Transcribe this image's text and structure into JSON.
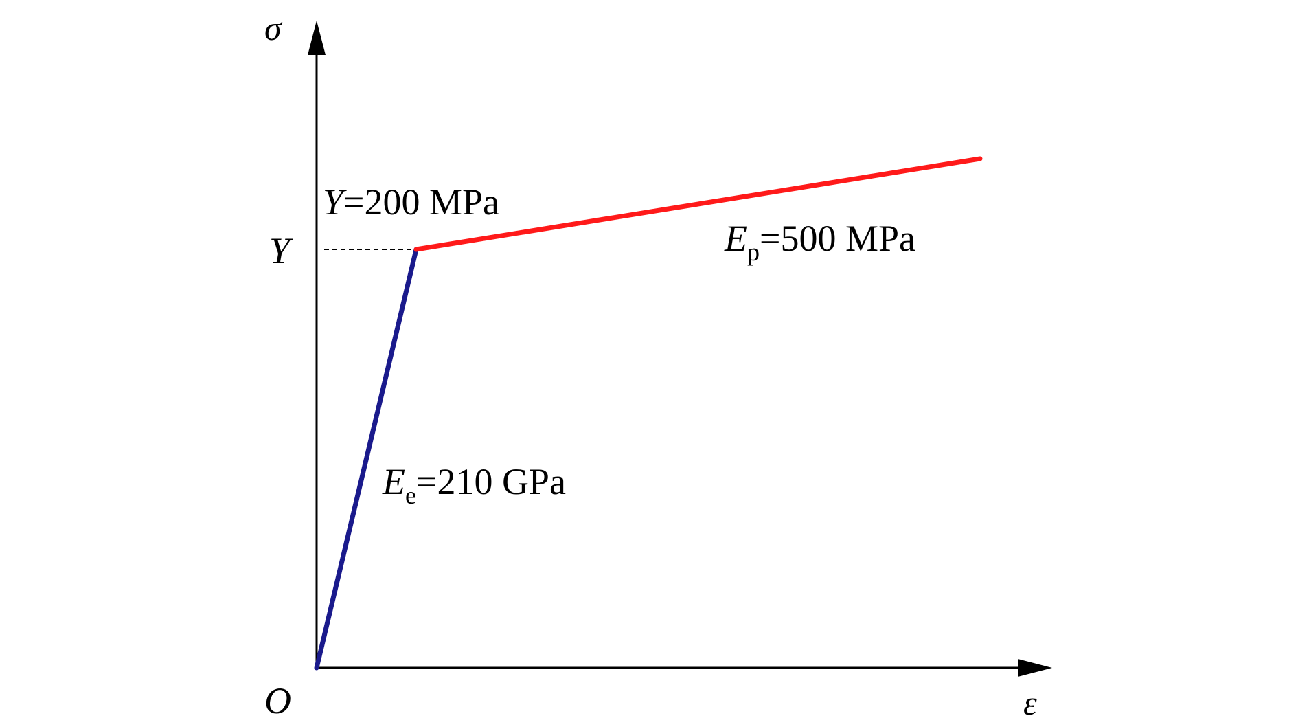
{
  "axes": {
    "y_symbol": "σ",
    "x_symbol": "ε",
    "origin_label": "O",
    "y_tick_label": "Y"
  },
  "annotations": {
    "yield": {
      "symbol": "Y",
      "equals_value": "=200 MPa"
    },
    "elastic_modulus": {
      "symbol": "E",
      "subscript": "e",
      "equals_value": "=210 GPa"
    },
    "plastic_modulus": {
      "symbol": "E",
      "subscript": "p",
      "equals_value": "=500 MPa"
    }
  },
  "segments": {
    "elastic": {
      "color": "#1a1a8c"
    },
    "plastic": {
      "color": "#ff1a1a"
    }
  },
  "colors": {
    "axis": "#000000",
    "text": "#000000"
  }
}
